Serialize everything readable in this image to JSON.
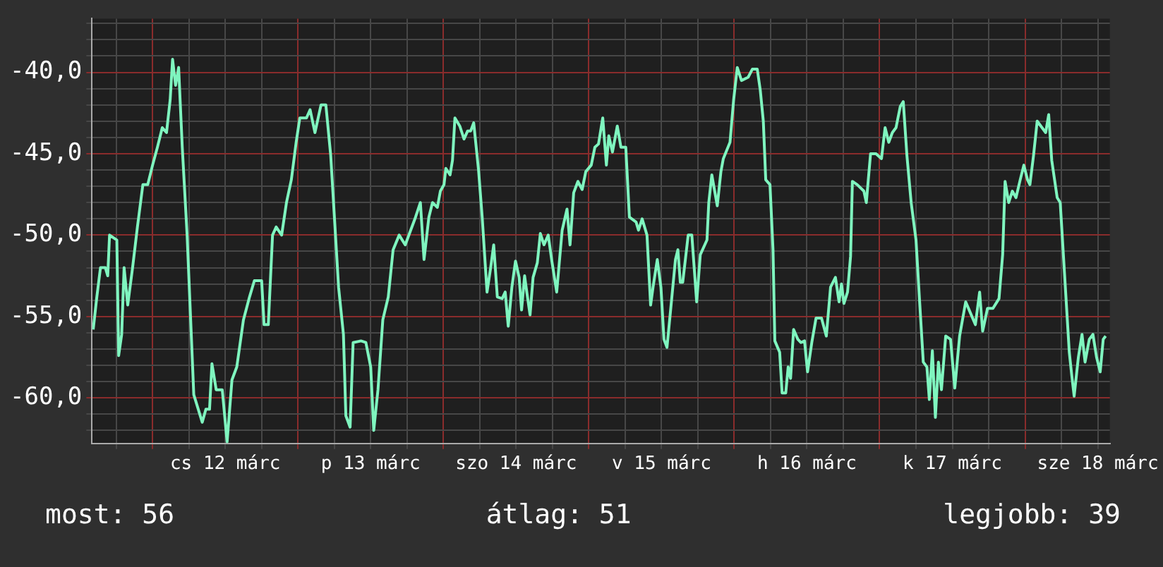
{
  "chart_data": {
    "type": "line",
    "color": "#7ff5bf",
    "grid": true,
    "legend": false,
    "marker": "none",
    "line_style": "solid",
    "xlim": [
      "--03-11T14:00",
      "--03-18T14:00"
    ],
    "ylim": [
      -62.8,
      -36.7
    ],
    "xticks": [
      {
        "value": "--03-11T18:00",
        "label": null
      },
      {
        "value": "--03-12T00:00",
        "label": null
      },
      {
        "value": "--03-12T06:00",
        "label": null
      },
      {
        "value": "--03-12T12:00",
        "label": "cs 12 márc"
      },
      {
        "value": "--03-12T18:00",
        "label": null
      },
      {
        "value": "--03-13T00:00",
        "label": null
      },
      {
        "value": "--03-13T06:00",
        "label": null
      },
      {
        "value": "--03-13T12:00",
        "label": "p 13 márc"
      },
      {
        "value": "--03-13T18:00",
        "label": null
      },
      {
        "value": "--03-14T00:00",
        "label": null
      },
      {
        "value": "--03-14T06:00",
        "label": null
      },
      {
        "value": "--03-14T12:00",
        "label": "szo 14 márc"
      },
      {
        "value": "--03-14T18:00",
        "label": null
      },
      {
        "value": "--03-15T00:00",
        "label": null
      },
      {
        "value": "--03-15T06:00",
        "label": null
      },
      {
        "value": "--03-15T12:00",
        "label": "v 15 márc"
      },
      {
        "value": "--03-15T18:00",
        "label": null
      },
      {
        "value": "--03-16T00:00",
        "label": null
      },
      {
        "value": "--03-16T06:00",
        "label": null
      },
      {
        "value": "--03-16T12:00",
        "label": "h 16 márc"
      },
      {
        "value": "--03-16T18:00",
        "label": null
      },
      {
        "value": "--03-17T00:00",
        "label": null
      },
      {
        "value": "--03-17T06:00",
        "label": null
      },
      {
        "value": "--03-17T12:00",
        "label": "k 17 márc"
      },
      {
        "value": "--03-17T18:00",
        "label": null
      },
      {
        "value": "--03-18T00:00",
        "label": null
      },
      {
        "value": "--03-18T06:00",
        "label": null
      },
      {
        "value": "--03-18T12:00",
        "label": "sze 18 márc"
      }
    ],
    "yticks": [
      {
        "value": -62,
        "label": null
      },
      {
        "value": -61,
        "label": null
      },
      {
        "value": -60,
        "label": "-60,0"
      },
      {
        "value": -59,
        "label": null
      },
      {
        "value": -58,
        "label": null
      },
      {
        "value": -57,
        "label": null
      },
      {
        "value": -56,
        "label": null
      },
      {
        "value": -55,
        "label": "-55,0"
      },
      {
        "value": -54,
        "label": null
      },
      {
        "value": -53,
        "label": null
      },
      {
        "value": -52,
        "label": null
      },
      {
        "value": -51,
        "label": null
      },
      {
        "value": -50,
        "label": "-50,0"
      },
      {
        "value": -49,
        "label": null
      },
      {
        "value": -48,
        "label": null
      },
      {
        "value": -47,
        "label": null
      },
      {
        "value": -46,
        "label": null
      },
      {
        "value": -45,
        "label": "-45,0"
      },
      {
        "value": -44,
        "label": null
      },
      {
        "value": -43,
        "label": null
      },
      {
        "value": -42,
        "label": null
      },
      {
        "value": -41,
        "label": null
      },
      {
        "value": -40,
        "label": "-40,0"
      },
      {
        "value": -39,
        "label": null
      },
      {
        "value": -38,
        "label": null
      },
      {
        "value": -37,
        "label": null
      }
    ],
    "x": [
      "--03-11T14:12",
      "--03-11T14:48",
      "--03-11T15:24",
      "--03-11T16:12",
      "--03-11T16:36",
      "--03-11T16:54",
      "--03-11T18:06",
      "--03-11T18:24",
      "--03-11T18:54",
      "--03-11T19:18",
      "--03-11T19:54",
      "--03-11T20:42",
      "--03-11T21:30",
      "--03-11T22:24",
      "--03-11T23:12",
      "--03-12T00:00",
      "--03-12T00:48",
      "--03-12T01:36",
      "--03-12T02:18",
      "--03-12T02:54",
      "--03-12T03:18",
      "--03-12T03:48",
      "--03-12T04:18",
      "--03-12T04:54",
      "--03-12T05:42",
      "--03-12T06:48",
      "--03-12T08:12",
      "--03-12T08:48",
      "--03-12T09:24",
      "--03-12T09:48",
      "--03-12T10:30",
      "--03-12T11:30",
      "--03-12T12:18",
      "--03-12T13:06",
      "--03-12T13:54",
      "--03-12T15:00",
      "--03-12T16:00",
      "--03-12T16:48",
      "--03-12T18:00",
      "--03-12T18:24",
      "--03-12T19:06",
      "--03-12T19:48",
      "--03-12T20:24",
      "--03-12T21:18",
      "--03-12T22:06",
      "--03-12T22:54",
      "--03-12T23:42",
      "--03-13T00:18",
      "--03-13T01:24",
      "--03-13T02:00",
      "--03-13T02:48",
      "--03-13T03:48",
      "--03-13T04:36",
      "--03-13T05:24",
      "--03-13T06:42",
      "--03-13T07:30",
      "--03-13T07:54",
      "--03-13T08:36",
      "--03-13T09:06",
      "--03-13T10:24",
      "--03-13T11:12",
      "--03-13T12:00",
      "--03-13T12:30",
      "--03-13T13:12",
      "--03-13T14:00",
      "--03-13T14:54",
      "--03-13T15:42",
      "--03-13T16:42",
      "--03-13T17:42",
      "--03-13T19:24",
      "--03-13T20:12",
      "--03-13T20:48",
      "--03-13T21:36",
      "--03-13T22:12",
      "--03-13T23:00",
      "--03-13T23:30",
      "--03-14T00:06",
      "--03-14T00:24",
      "--03-14T01:06",
      "--03-14T01:30",
      "--03-14T01:54",
      "--03-14T02:42",
      "--03-14T03:24",
      "--03-14T04:00",
      "--03-14T04:30",
      "--03-14T05:00",
      "--03-14T05:48",
      "--03-14T06:24",
      "--03-14T07:12",
      "--03-14T07:48",
      "--03-14T08:18",
      "--03-14T08:54",
      "--03-14T09:42",
      "--03-14T10:12",
      "--03-14T10:42",
      "--03-14T11:18",
      "--03-14T11:54",
      "--03-14T12:30",
      "--03-14T12:54",
      "--03-14T13:24",
      "--03-14T13:48",
      "--03-14T14:18",
      "--03-14T14:48",
      "--03-14T15:30",
      "--03-14T16:00",
      "--03-14T16:36",
      "--03-14T17:18",
      "--03-14T17:54",
      "--03-14T18:42",
      "--03-14T19:36",
      "--03-14T20:24",
      "--03-14T20:54",
      "--03-14T21:30",
      "--03-14T22:12",
      "--03-14T22:54",
      "--03-14T23:30",
      "--03-15T00:24",
      "--03-15T01:00",
      "--03-15T01:36",
      "--03-15T02:18",
      "--03-15T02:54",
      "--03-15T03:18",
      "--03-15T03:54",
      "--03-15T04:42",
      "--03-15T05:18",
      "--03-15T06:06",
      "--03-15T06:42",
      "--03-15T07:48",
      "--03-15T08:12",
      "--03-15T08:48",
      "--03-15T09:36",
      "--03-15T10:12",
      "--03-15T10:36",
      "--03-15T11:18",
      "--03-15T11:54",
      "--03-15T12:24",
      "--03-15T12:54",
      "--03-15T13:30",
      "--03-15T14:18",
      "--03-15T14:42",
      "--03-15T15:06",
      "--03-15T15:30",
      "--03-15T16:24",
      "--03-15T17:00",
      "--03-15T17:48",
      "--03-15T18:24",
      "--03-15T19:30",
      "--03-15T19:48",
      "--03-15T20:18",
      "--03-15T21:12",
      "--03-15T21:48",
      "--03-15T22:12",
      "--03-15T23:18",
      "--03-15T23:54",
      "--03-16T00:30",
      "--03-16T01:12",
      "--03-16T02:18",
      "--03-16T03:00",
      "--03-16T03:48",
      "--03-16T04:18",
      "--03-16T04:48",
      "--03-16T05:12",
      "--03-16T05:54",
      "--03-16T06:24",
      "--03-16T06:42",
      "--03-16T07:30",
      "--03-16T07:54",
      "--03-16T08:30",
      "--03-16T08:54",
      "--03-16T09:18",
      "--03-16T09:48",
      "--03-16T10:30",
      "--03-16T11:00",
      "--03-16T11:36",
      "--03-16T12:06",
      "--03-16T12:48",
      "--03-16T13:30",
      "--03-16T14:24",
      "--03-16T15:12",
      "--03-16T15:54",
      "--03-16T16:42",
      "--03-16T17:18",
      "--03-16T17:42",
      "--03-16T18:06",
      "--03-16T18:42",
      "--03-16T19:12",
      "--03-16T19:30",
      "--03-16T20:18",
      "--03-16T21:24",
      "--03-16T21:48",
      "--03-16T22:30",
      "--03-16T23:24",
      "--03-17T00:18",
      "--03-17T00:54",
      "--03-17T01:30",
      "--03-17T02:06",
      "--03-17T02:42",
      "--03-17T03:24",
      "--03-17T03:54",
      "--03-17T04:30",
      "--03-17T05:12",
      "--03-17T06:00",
      "--03-17T06:36",
      "--03-17T07:12",
      "--03-17T07:48",
      "--03-17T08:12",
      "--03-17T08:42",
      "--03-17T09:12",
      "--03-17T09:42",
      "--03-17T10:12",
      "--03-17T10:54",
      "--03-17T11:42",
      "--03-17T12:24",
      "--03-17T13:12",
      "--03-17T14:12",
      "--03-17T15:00",
      "--03-17T15:48",
      "--03-17T16:30",
      "--03-17T17:00",
      "--03-17T17:48",
      "--03-17T18:42",
      "--03-17T19:42",
      "--03-17T20:18",
      "--03-17T20:42",
      "--03-17T21:18",
      "--03-17T21:54",
      "--03-17T22:30",
      "--03-17T23:12",
      "--03-17T23:48",
      "--03-18T00:24",
      "--03-18T00:48",
      "--03-18T01:24",
      "--03-18T02:00",
      "--03-18T02:48",
      "--03-18T03:24",
      "--03-18T03:54",
      "--03-18T04:24",
      "--03-18T05:18",
      "--03-18T05:48",
      "--03-18T06:30",
      "--03-18T07:18",
      "--03-18T07:42",
      "--03-18T08:06",
      "--03-18T08:48",
      "--03-18T09:24",
      "--03-18T09:54",
      "--03-18T10:36",
      "--03-18T11:12",
      "--03-18T11:48",
      "--03-18T12:24",
      "--03-18T12:54",
      "--03-18T13:18"
    ],
    "values": [
      -55.8,
      -53.8,
      -52.0,
      -52.0,
      -52.5,
      -50.0,
      -50.3,
      -57.4,
      -56.1,
      -52.0,
      -54.3,
      -52.0,
      -49.5,
      -46.9,
      -46.9,
      -45.7,
      -44.6,
      -43.4,
      -43.7,
      -41.7,
      -39.2,
      -40.8,
      -39.7,
      -44.6,
      -50.0,
      -59.8,
      -61.5,
      -60.7,
      -60.7,
      -57.9,
      -59.5,
      -59.5,
      -62.7,
      -58.9,
      -58.1,
      -55.2,
      -53.8,
      -52.8,
      -52.8,
      -55.5,
      -55.5,
      -50.0,
      -49.5,
      -50.0,
      -48.0,
      -46.6,
      -44.3,
      -42.8,
      -42.8,
      -42.3,
      -43.7,
      -42.0,
      -42.0,
      -45.1,
      -53.2,
      -56.1,
      -61.1,
      -61.8,
      -56.6,
      -56.5,
      -56.6,
      -58.1,
      -62.0,
      -59.5,
      -55.2,
      -53.8,
      -50.9,
      -50.0,
      -50.6,
      -48.9,
      -48.0,
      -51.5,
      -48.9,
      -48.0,
      -48.3,
      -47.3,
      -46.9,
      -45.9,
      -46.3,
      -45.4,
      -42.8,
      -43.3,
      -44.1,
      -43.6,
      -43.6,
      -43.1,
      -46.0,
      -48.9,
      -53.5,
      -52.0,
      -50.6,
      -53.8,
      -53.9,
      -53.5,
      -55.6,
      -53.2,
      -51.6,
      -52.6,
      -54.6,
      -52.5,
      -53.6,
      -54.9,
      -52.6,
      -51.7,
      -49.9,
      -50.6,
      -50.0,
      -51.6,
      -53.5,
      -49.7,
      -48.4,
      -50.6,
      -47.4,
      -46.7,
      -47.2,
      -46.1,
      -45.7,
      -44.6,
      -44.4,
      -42.8,
      -45.7,
      -43.9,
      -44.9,
      -43.3,
      -44.6,
      -44.6,
      -48.9,
      -49.2,
      -49.7,
      -49.0,
      -50.0,
      -54.3,
      -53.2,
      -51.5,
      -53.2,
      -56.4,
      -56.9,
      -54.6,
      -51.5,
      -50.9,
      -52.9,
      -52.9,
      -50.0,
      -50.0,
      -54.1,
      -51.2,
      -50.3,
      -48.0,
      -46.3,
      -48.2,
      -46.1,
      -45.3,
      -44.3,
      -41.7,
      -39.7,
      -40.5,
      -40.3,
      -39.8,
      -39.8,
      -41.1,
      -43.0,
      -46.6,
      -46.9,
      -50.9,
      -56.5,
      -57.2,
      -59.7,
      -59.7,
      -58.1,
      -58.8,
      -55.8,
      -56.4,
      -56.6,
      -56.5,
      -58.4,
      -56.6,
      -55.1,
      -55.1,
      -56.2,
      -53.2,
      -52.6,
      -54.1,
      -53.0,
      -54.2,
      -53.5,
      -51.3,
      -46.7,
      -46.9,
      -47.3,
      -48.0,
      -45.0,
      -45.0,
      -45.3,
      -43.4,
      -44.3,
      -43.7,
      -43.4,
      -42.1,
      -41.8,
      -45.1,
      -48.0,
      -50.3,
      -54.1,
      -57.8,
      -58.1,
      -60.1,
      -57.1,
      -61.2,
      -57.8,
      -59.5,
      -56.2,
      -56.4,
      -59.4,
      -56.2,
      -54.1,
      -54.8,
      -55.5,
      -53.5,
      -55.9,
      -54.5,
      -54.5,
      -53.9,
      -51.2,
      -46.7,
      -48.0,
      -47.3,
      -47.7,
      -46.6,
      -45.7,
      -46.6,
      -46.9,
      -45.1,
      -43.0,
      -43.4,
      -43.7,
      -42.6,
      -45.4,
      -47.7,
      -48.0,
      -52.3,
      -57.2,
      -58.6,
      -59.9,
      -57.5,
      -56.1,
      -57.8,
      -56.4,
      -56.1,
      -57.5,
      -58.4,
      -56.4,
      -56.2
    ],
    "annotations": [
      "most: 56",
      "átlag: 51",
      "legjobb: 39"
    ]
  }
}
